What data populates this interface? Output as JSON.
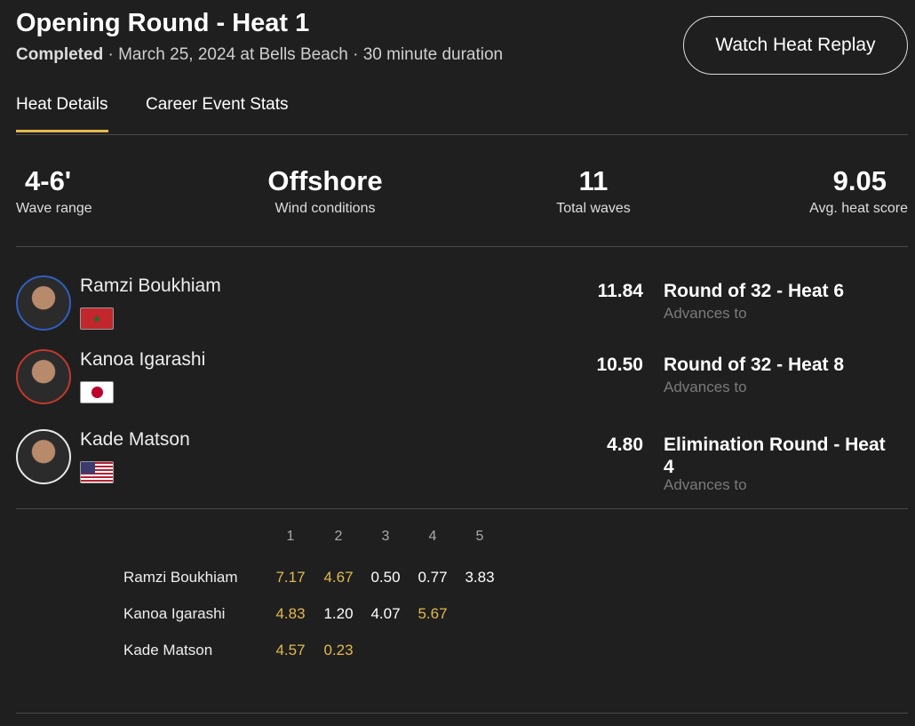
{
  "header": {
    "title": "Opening Round - Heat 1",
    "status": "Completed",
    "details": " · March 25, 2024 at Bells Beach · 30 minute duration",
    "replay_button": "Watch Heat Replay"
  },
  "tabs": [
    {
      "label": "Heat Details",
      "active": true
    },
    {
      "label": "Career Event Stats",
      "active": false
    }
  ],
  "stats": [
    {
      "value": "4-6'",
      "label": "Wave range"
    },
    {
      "value": "Offshore",
      "label": "Wind conditions"
    },
    {
      "value": "11",
      "label": "Total waves"
    },
    {
      "value": "9.05",
      "label": "Avg. heat score"
    }
  ],
  "surfers": [
    {
      "name": "Ramzi Boukhiam",
      "country_flag": "Morocco",
      "ring_color": "#2f5fc0",
      "score": "11.84",
      "next": "Round of 32 - Heat 6",
      "advances_label": "Advances to"
    },
    {
      "name": "Kanoa Igarashi",
      "country_flag": "Japan",
      "ring_color": "#c0392b",
      "score": "10.50",
      "next": "Round of 32 - Heat 8",
      "advances_label": "Advances to"
    },
    {
      "name": "Kade Matson",
      "country_flag": "USA",
      "ring_color": "#e8e8e8",
      "score": "4.80",
      "next": "Elimination Round - Heat 4",
      "advances_label": "Advances to"
    }
  ],
  "wave_table": {
    "headers": [
      "1",
      "2",
      "3",
      "4",
      "5"
    ],
    "highlight_color": "#e2b94f",
    "rows": [
      {
        "name": "Ramzi Boukhiam",
        "scores": [
          {
            "v": "7.17",
            "counted": true
          },
          {
            "v": "4.67",
            "counted": true
          },
          {
            "v": "0.50",
            "counted": false
          },
          {
            "v": "0.77",
            "counted": false
          },
          {
            "v": "3.83",
            "counted": false
          }
        ]
      },
      {
        "name": "Kanoa Igarashi",
        "scores": [
          {
            "v": "4.83",
            "counted": true
          },
          {
            "v": "1.20",
            "counted": false
          },
          {
            "v": "4.07",
            "counted": false
          },
          {
            "v": "5.67",
            "counted": true
          }
        ]
      },
      {
        "name": "Kade Matson",
        "scores": [
          {
            "v": "4.57",
            "counted": true
          },
          {
            "v": "0.23",
            "counted": true
          }
        ]
      }
    ]
  }
}
